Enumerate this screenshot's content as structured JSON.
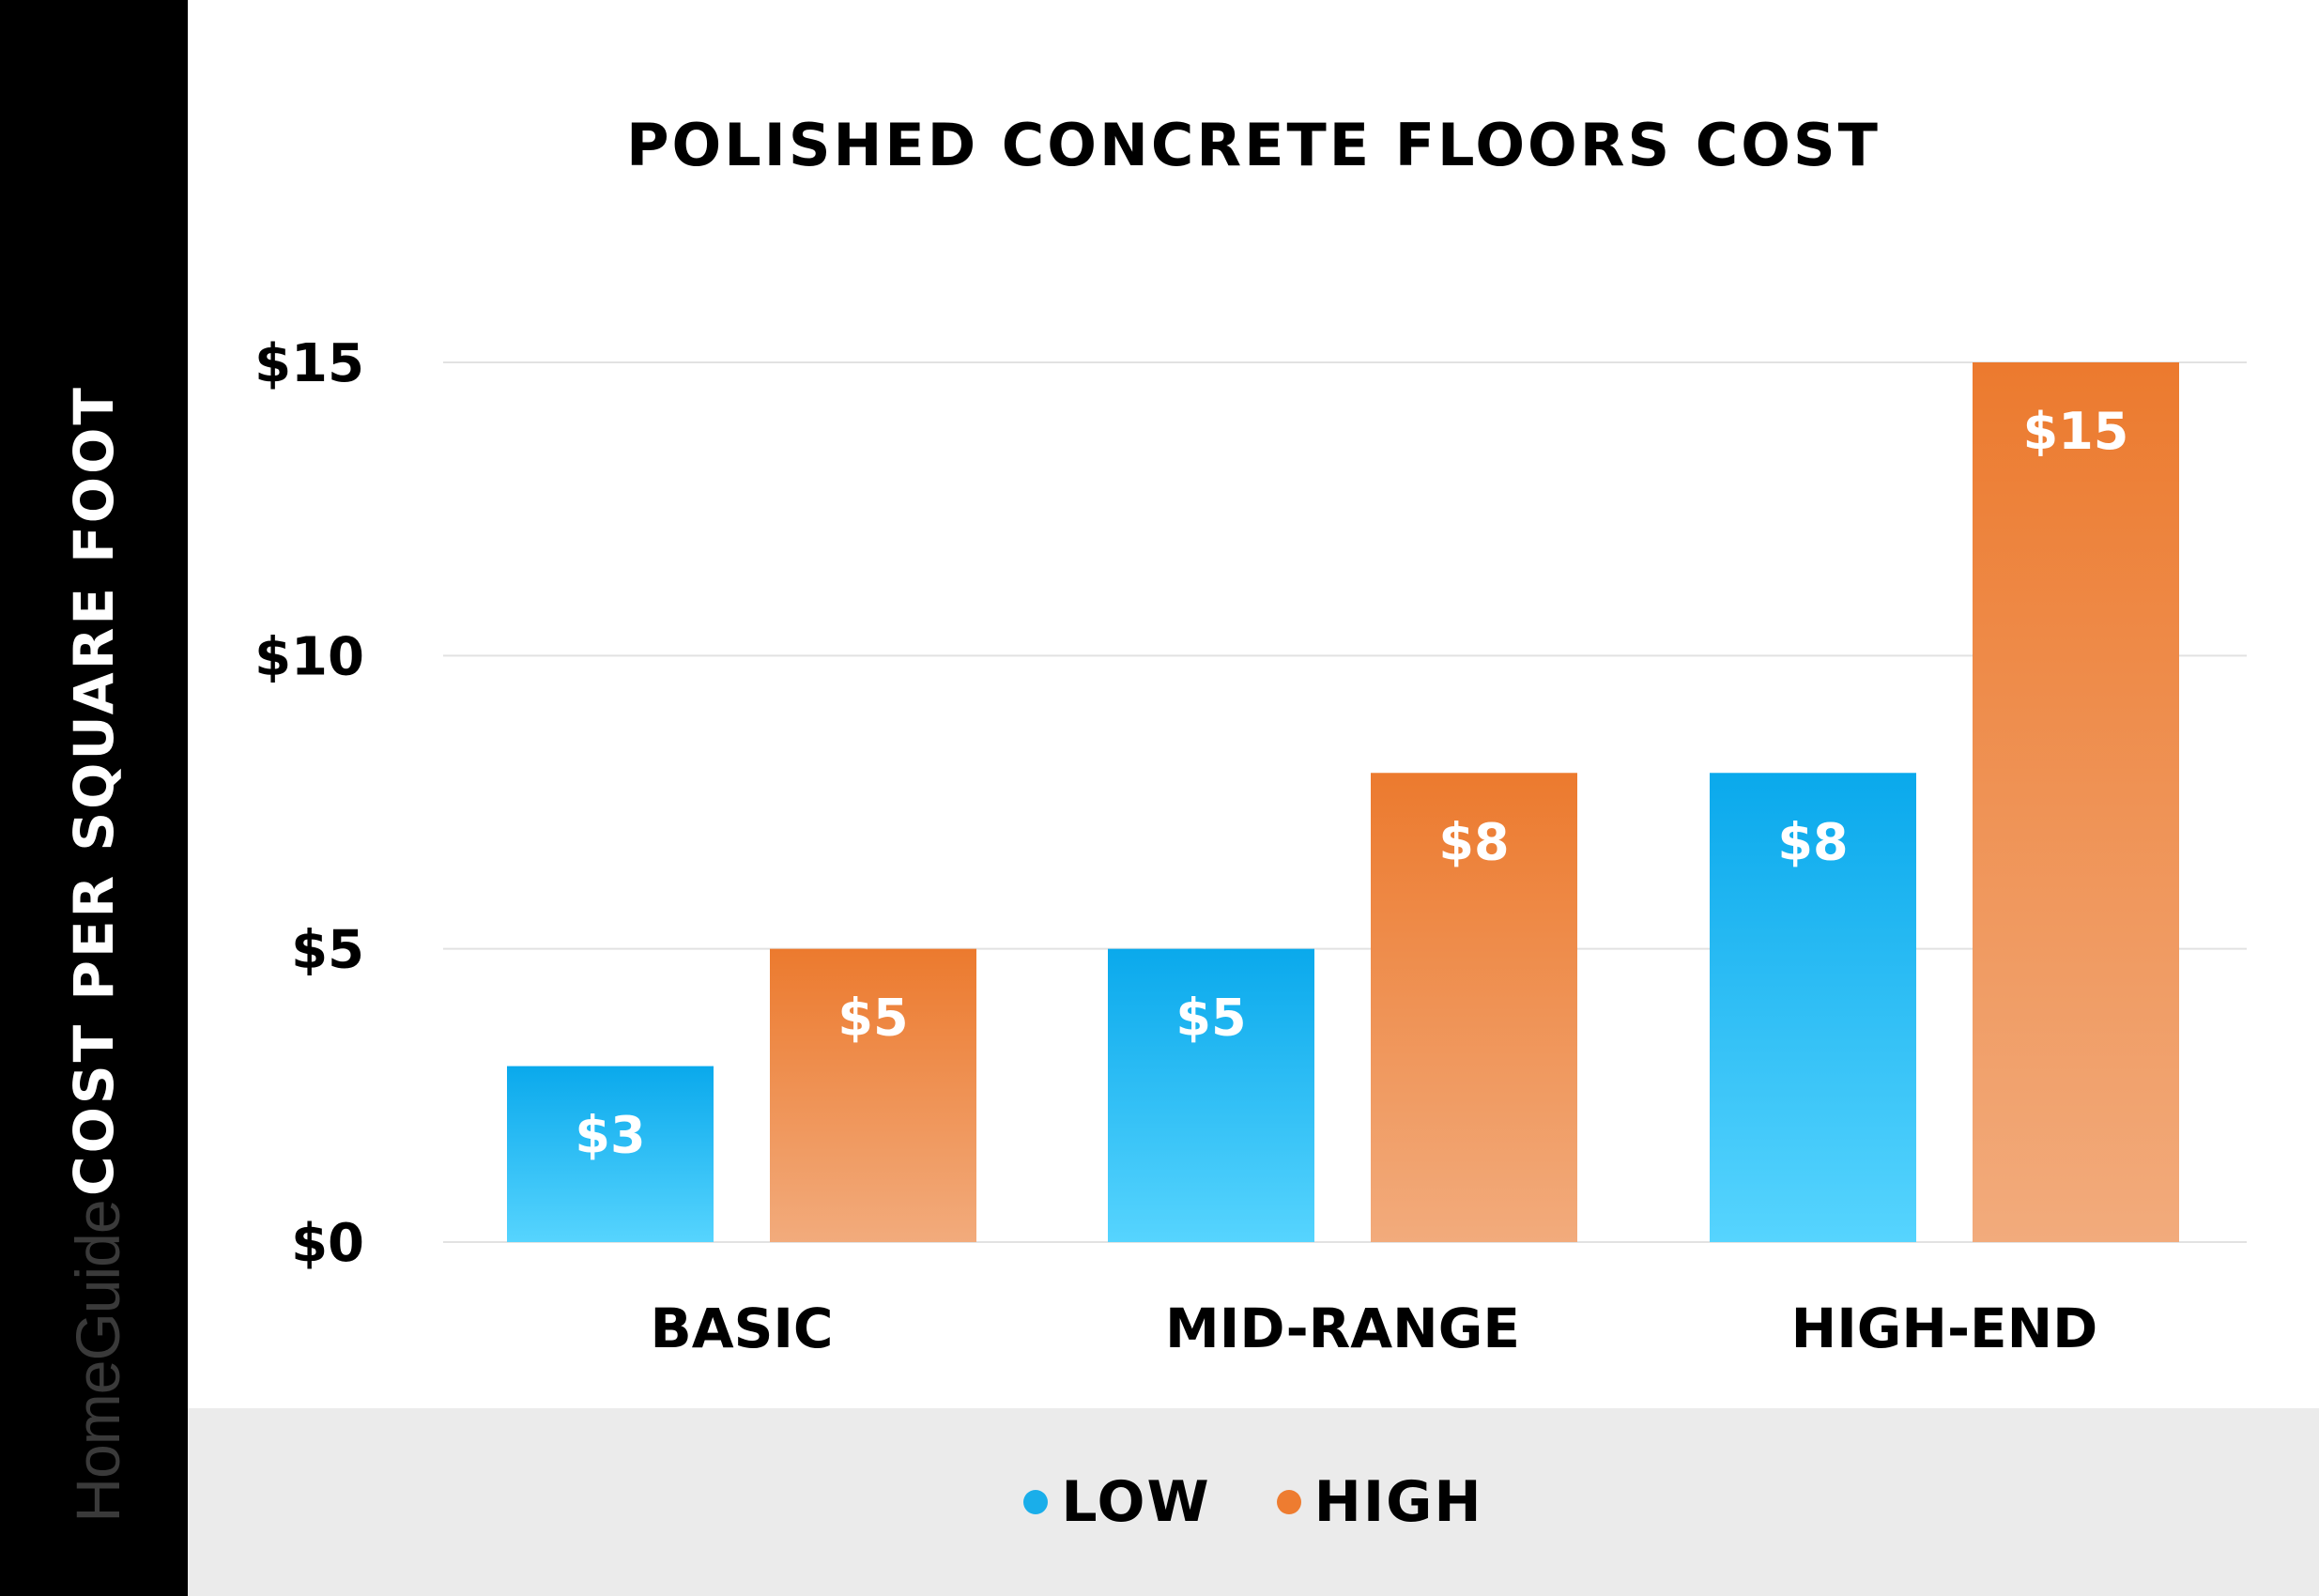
{
  "chart_data": {
    "type": "bar",
    "title": "POLISHED CONCRETE FLOORS COST",
    "ylabel": "COST PER SQUARE FOOT",
    "xlabel": "",
    "categories": [
      "BASIC",
      "MID-RANGE",
      "HIGH-END"
    ],
    "series": [
      {
        "name": "LOW",
        "values": [
          3,
          5,
          8
        ],
        "labels": [
          "$3",
          "$5",
          "$8"
        ],
        "color": "#1aaeea"
      },
      {
        "name": "HIGH",
        "values": [
          5,
          8,
          15
        ],
        "labels": [
          "$5",
          "$8",
          "$15"
        ],
        "color": "#ee7c30"
      }
    ],
    "ylim": [
      0,
      15
    ],
    "yticks": [
      0,
      5,
      10,
      15
    ],
    "ytick_labels": [
      "$0",
      "$5",
      "$10",
      "$15"
    ],
    "grid": true,
    "legend_position": "bottom"
  },
  "brand": "HomeGuide",
  "colors": {
    "low_top": "#0aa9ec",
    "low_bottom": "#56d4fe",
    "high_top": "#ec7a2e",
    "high_bottom": "#f2ab7c",
    "sidebar": "#000000",
    "legend_band": "#ebebeb"
  }
}
